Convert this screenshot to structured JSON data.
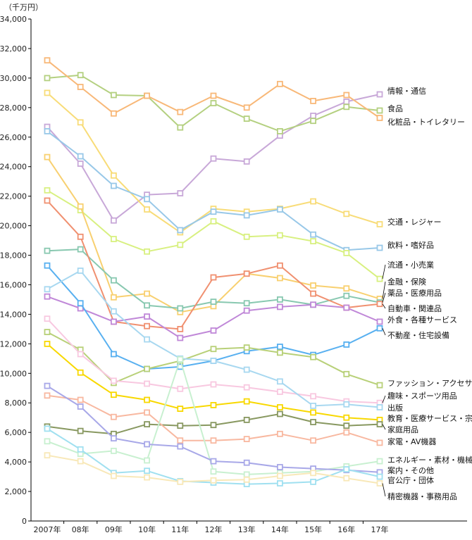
{
  "chart_data": {
    "type": "line",
    "unit_label": "（千万円）",
    "categories": [
      "2007年",
      "08年",
      "09年",
      "10年",
      "11年",
      "12年",
      "13年",
      "14年",
      "15年",
      "16年",
      "17年"
    ],
    "ylim": [
      0,
      34000
    ],
    "yticks": [
      0,
      2000,
      4000,
      6000,
      8000,
      10000,
      12000,
      14000,
      16000,
      18000,
      20000,
      22000,
      24000,
      26000,
      28000,
      30000,
      32000,
      34000
    ],
    "ytick_labels": [
      "0",
      "2,000",
      "4,000",
      "6,000",
      "8,000",
      "10,000",
      "12,000",
      "14,000",
      "16,000",
      "18,000",
      "20,000",
      "22,000",
      "24,000",
      "26,000",
      "28,000",
      "30,000",
      "32,000",
      "34,000"
    ],
    "grid": false,
    "legend": "labels at right end of lines",
    "series": [
      {
        "name": "情報・通信",
        "color": "#c8a8d8",
        "values": [
          26700,
          24200,
          20350,
          22100,
          22200,
          24550,
          24350,
          26100,
          27450,
          28400,
          28900
        ]
      },
      {
        "name": "食品",
        "color": "#b4d080",
        "values": [
          30000,
          30200,
          28850,
          28800,
          26650,
          28300,
          27250,
          26400,
          27100,
          28050,
          27800
        ]
      },
      {
        "name": "化粧品・トイレタリー",
        "color": "#f8b878",
        "values": [
          31200,
          29400,
          27600,
          28800,
          27700,
          28800,
          28000,
          29600,
          28450,
          28850,
          27300
        ]
      },
      {
        "name": "交通・レジャー",
        "color": "#f8dc78",
        "values": [
          29000,
          27000,
          23400,
          21100,
          19550,
          21150,
          20950,
          21150,
          21650,
          20800,
          20100
        ]
      },
      {
        "name": "飲料・嗜好品",
        "color": "#98c8e8",
        "values": [
          26400,
          24700,
          22700,
          21800,
          19700,
          20950,
          20700,
          21100,
          19400,
          18350,
          18500
        ]
      },
      {
        "name": "流通・小売業",
        "color": "#d8f080",
        "values": [
          22400,
          21050,
          19100,
          18250,
          18700,
          20300,
          19250,
          19350,
          18950,
          18150,
          16400
        ]
      },
      {
        "name": "金融・保険",
        "color": "#f8d070",
        "values": [
          24650,
          21300,
          15150,
          15400,
          14150,
          14550,
          16750,
          16450,
          15950,
          15750,
          15050
        ]
      },
      {
        "name": "薬品・医療用品",
        "color": "#88c8b0",
        "values": [
          18300,
          18400,
          16300,
          14600,
          14400,
          14850,
          14750,
          15000,
          14650,
          15250,
          14800
        ]
      },
      {
        "name": "自動車・関連品",
        "color": "#f09070",
        "values": [
          21700,
          19250,
          13500,
          13200,
          13000,
          16500,
          16750,
          17300,
          15400,
          14450,
          14700
        ]
      },
      {
        "name": "外食・各種サービス",
        "color": "#c088d8",
        "values": [
          15200,
          14400,
          13500,
          13850,
          12400,
          12900,
          14250,
          14500,
          14650,
          14450,
          13500
        ]
      },
      {
        "name": "不動産・住宅設備",
        "color": "#58b0f0",
        "values": [
          17300,
          14750,
          11300,
          10300,
          10450,
          10850,
          11500,
          11800,
          11250,
          11950,
          13050
        ]
      },
      {
        "name": "ファッション・アクセサリー",
        "color": "#b8d078",
        "values": [
          12800,
          11600,
          9350,
          10300,
          10850,
          11650,
          11750,
          11400,
          11100,
          9950,
          9200
        ]
      },
      {
        "name": "趣味・スポーツ用品",
        "color": "#f8c8e0",
        "values": [
          13700,
          11300,
          9500,
          9300,
          8950,
          9250,
          9050,
          8750,
          8450,
          8100,
          8000
        ]
      },
      {
        "name": "出版",
        "color": "#a8d8f0",
        "values": [
          15700,
          16950,
          14200,
          12300,
          11000,
          10850,
          10250,
          9450,
          7800,
          7900,
          7700
        ]
      },
      {
        "name": "教育・医療サービス・宗教",
        "color": "#f8d800",
        "values": [
          12000,
          10050,
          8550,
          8200,
          7600,
          7850,
          8100,
          7700,
          7350,
          7000,
          6850
        ]
      },
      {
        "name": "家庭用品",
        "color": "#889860",
        "values": [
          6400,
          6100,
          5900,
          6550,
          6450,
          6500,
          6850,
          7250,
          6700,
          6450,
          6550
        ]
      },
      {
        "name": "家電・AV機器",
        "color": "#f8b8a0",
        "values": [
          8500,
          8200,
          7050,
          7350,
          5450,
          5450,
          5550,
          5900,
          5450,
          6000,
          5300
        ]
      },
      {
        "name": "エネルギー・素材・機械",
        "color": "#c8f0d0",
        "values": [
          5400,
          4550,
          4750,
          4100,
          10950,
          3350,
          3150,
          3250,
          3350,
          3700,
          4050
        ]
      },
      {
        "name": "案内・その他",
        "color": "#a8a8e8",
        "values": [
          9150,
          7750,
          5600,
          5200,
          5050,
          4050,
          3950,
          3650,
          3550,
          3450,
          3300
        ]
      },
      {
        "name": "官公庁・団体",
        "color": "#a0e0f0",
        "values": [
          6250,
          4850,
          3250,
          3400,
          2700,
          2600,
          2500,
          2550,
          2650,
          3500,
          3000
        ]
      },
      {
        "name": "精密機器・事務用品",
        "color": "#f8e8b8",
        "values": [
          4450,
          4050,
          3050,
          2950,
          2650,
          2750,
          2800,
          3050,
          3250,
          2900,
          2550
        ]
      }
    ]
  }
}
